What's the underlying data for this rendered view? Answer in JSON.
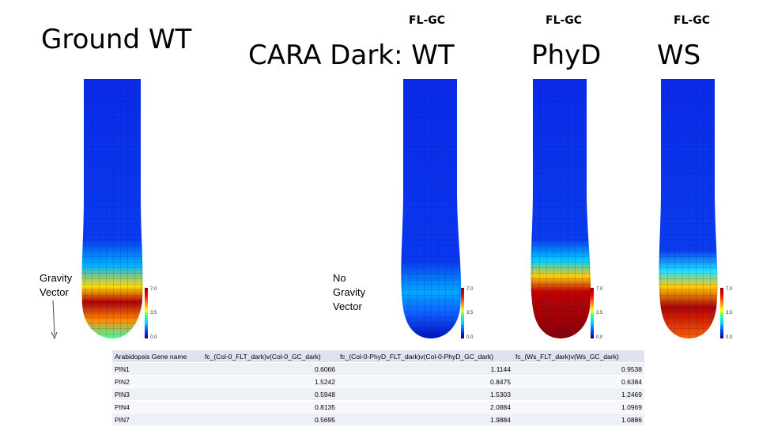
{
  "titles": {
    "ground": "Ground WT",
    "cara_dark": "CARA Dark: WT",
    "phyd": "PhyD",
    "ws": "WS"
  },
  "subtitles": [
    "FL-GC",
    "FL-GC",
    "FL-GC"
  ],
  "annotations": {
    "gravity_vector": [
      "Gravity",
      "Vector"
    ],
    "no_gravity_vector": [
      "No",
      "Gravity",
      "Vector"
    ]
  },
  "color_scale": {
    "max": "7.0",
    "mid": "3.5",
    "min": "0.0"
  },
  "table": {
    "headers": [
      "Arabidopsis Gene name",
      "fc_(Col-0_FLT_dark)v(Col-0_GC_dark)",
      "fc_(Col-0-PhyD_FLT_dark)v(Col-0-PhyD_GC_dark)",
      "fc_(Ws_FLT_dark)v(Ws_GC_dark)"
    ],
    "rows": [
      [
        "PIN1",
        "0.6066",
        "1.1144",
        "0.9538"
      ],
      [
        "PIN2",
        "1.5242",
        "0.8475",
        "0.6384"
      ],
      [
        "PIN3",
        "0.5948",
        "1.5303",
        "1.2469"
      ],
      [
        "PIN4",
        "0.8135",
        "2.0884",
        "1.0969"
      ],
      [
        "PIN7",
        "0.5695",
        "1.9884",
        "1.0886"
      ]
    ]
  },
  "colors": {
    "root_blue": "#0a28e6",
    "root_deep": "#00009a",
    "hot_red": "#b40000",
    "orange": "#ff8c00",
    "cyan": "#00d0ff",
    "green": "#40ffa0"
  }
}
